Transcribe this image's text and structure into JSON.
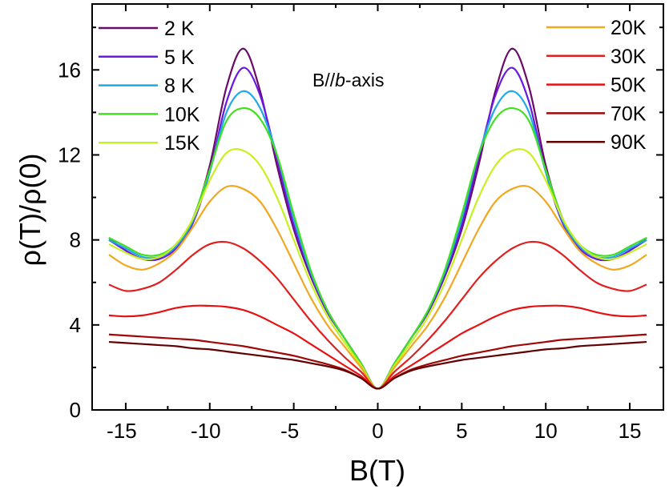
{
  "chart_data": {
    "type": "line",
    "title": "",
    "xlabel": "B(T)",
    "ylabel": "ρ(T)/ρ(0)",
    "xlim": [
      -17,
      17
    ],
    "ylim": [
      0,
      19.1
    ],
    "xticks": [
      -15,
      -10,
      -5,
      0,
      5,
      10,
      15
    ],
    "xtick_labels": [
      "-15",
      "-10",
      "-5",
      "0",
      "5",
      "10",
      "15"
    ],
    "yticks": [
      0,
      4,
      8,
      12,
      16
    ],
    "ytick_labels": [
      "0",
      "4",
      "8",
      "12",
      "16"
    ],
    "grid": false,
    "symmetric_in_x": true,
    "annotation": {
      "prefix": "B//",
      "italic": "b",
      "suffix": "-axis"
    },
    "x_half": [
      0,
      1,
      2,
      3,
      4,
      5,
      6,
      7,
      8,
      9,
      10,
      11,
      12,
      13,
      14,
      15,
      16
    ],
    "series": [
      {
        "name": "2  K",
        "color": "#6a0a6a",
        "values": [
          1,
          2.2,
          3.4,
          4.6,
          6.3,
          8.5,
          11.5,
          15.0,
          17.0,
          15.2,
          11.5,
          9.0,
          7.8,
          7.2,
          7.1,
          7.5,
          8.1
        ]
      },
      {
        "name": "5  K",
        "color": "#6a1ae0",
        "values": [
          1,
          2.2,
          3.4,
          4.6,
          6.4,
          8.7,
          11.8,
          14.8,
          16.1,
          14.5,
          11.2,
          8.8,
          7.6,
          7.1,
          7.1,
          7.5,
          8.0
        ]
      },
      {
        "name": "8  K",
        "color": "#20a8e8",
        "values": [
          1,
          2.2,
          3.4,
          4.7,
          6.5,
          9.0,
          12.0,
          14.2,
          15.0,
          14.0,
          11.2,
          8.9,
          7.7,
          7.2,
          7.2,
          7.6,
          8.0
        ]
      },
      {
        "name": "10K",
        "color": "#40e020",
        "values": [
          1,
          2.2,
          3.4,
          4.7,
          6.6,
          9.2,
          12.0,
          13.7,
          14.2,
          13.6,
          11.3,
          9.0,
          7.8,
          7.3,
          7.3,
          7.7,
          8.1
        ]
      },
      {
        "name": "15K",
        "color": "#c8f020",
        "values": [
          1,
          2.1,
          3.2,
          4.4,
          6.0,
          8.0,
          10.0,
          11.5,
          12.2,
          12.1,
          10.8,
          9.0,
          7.8,
          7.2,
          7.1,
          7.4,
          7.8
        ]
      },
      {
        "name": "20K",
        "color": "#f0a820",
        "values": [
          1,
          2.0,
          3.0,
          4.0,
          5.3,
          6.9,
          8.5,
          9.8,
          10.4,
          10.5,
          9.8,
          8.6,
          7.5,
          6.9,
          6.6,
          6.8,
          7.3
        ]
      },
      {
        "name": "30K",
        "color": "#e02020",
        "values": [
          1,
          1.8,
          2.5,
          3.3,
          4.2,
          5.2,
          6.2,
          7.0,
          7.6,
          7.9,
          7.8,
          7.3,
          6.6,
          6.0,
          5.7,
          5.6,
          5.9
        ]
      },
      {
        "name": "50K",
        "color": "#e81010",
        "values": [
          1,
          1.6,
          2.1,
          2.6,
          3.1,
          3.6,
          4.0,
          4.4,
          4.7,
          4.85,
          4.9,
          4.9,
          4.8,
          4.6,
          4.45,
          4.4,
          4.45
        ]
      },
      {
        "name": "70K",
        "color": "#a00808",
        "values": [
          1,
          1.5,
          1.9,
          2.15,
          2.35,
          2.55,
          2.7,
          2.85,
          3.0,
          3.1,
          3.2,
          3.3,
          3.35,
          3.4,
          3.45,
          3.5,
          3.55
        ]
      },
      {
        "name": "90K",
        "color": "#600000",
        "values": [
          1,
          1.5,
          1.85,
          2.05,
          2.2,
          2.35,
          2.45,
          2.55,
          2.65,
          2.75,
          2.85,
          2.9,
          3.0,
          3.05,
          3.1,
          3.15,
          3.2
        ]
      }
    ]
  }
}
